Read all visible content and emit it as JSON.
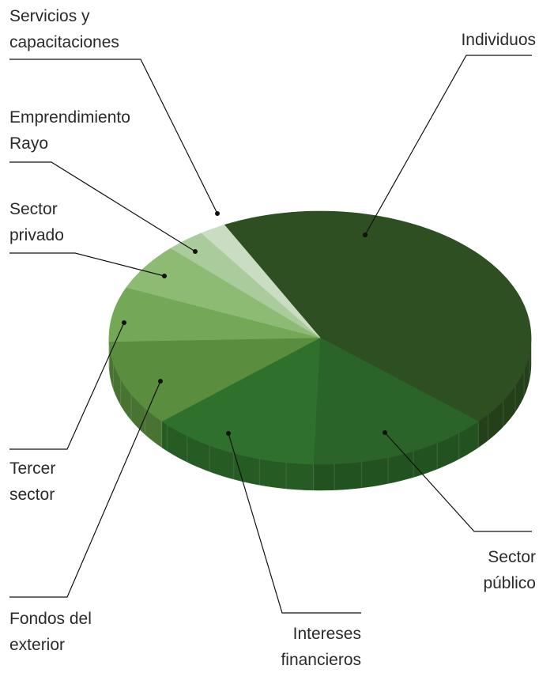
{
  "chart_data": {
    "type": "pie",
    "categories": [
      "Individuos",
      "Sector público",
      "Intereses financieros",
      "Fondos del exterior",
      "Tercer sector",
      "Sector privado",
      "Emprendimiento Rayo",
      "Servicios y capacitaciones"
    ],
    "values": [
      44,
      14,
      13,
      11,
      7,
      6,
      3,
      2
    ],
    "colors": [
      "#2d4f22",
      "#2b6429",
      "#2f702c",
      "#5a8d3e",
      "#74a857",
      "#8ebb73",
      "#aacb9b",
      "#cadcc1"
    ]
  }
}
